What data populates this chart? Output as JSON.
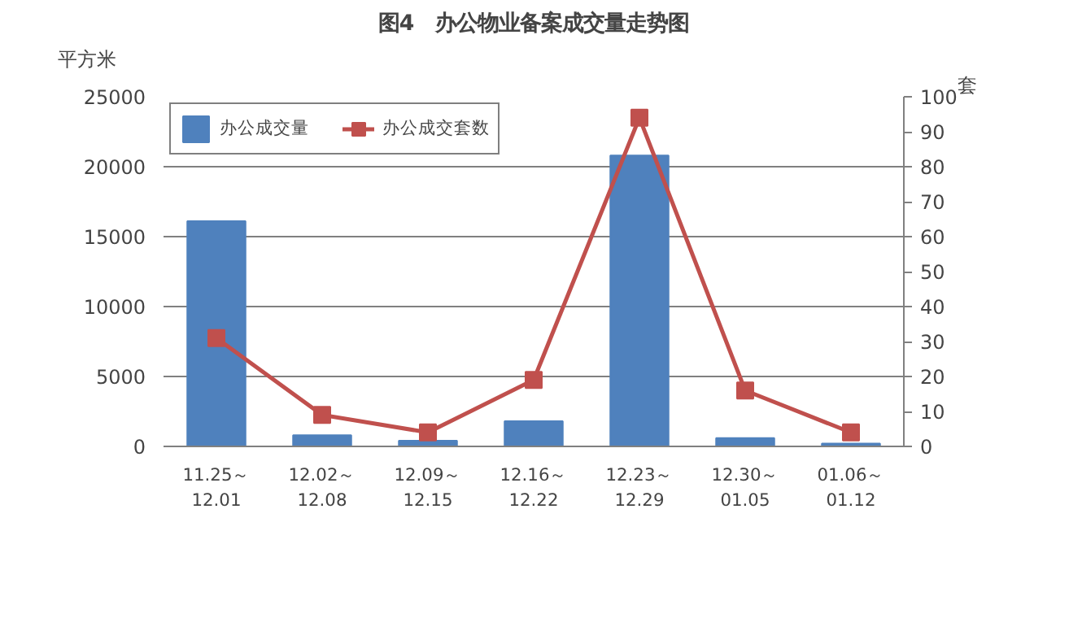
{
  "chart_data": {
    "type": "bar",
    "title": "图4　办公物业备案成交量走势图",
    "ylabel": "平方米",
    "y2label": "套",
    "categories": [
      "11.25～\n12.01",
      "12.02～\n12.08",
      "12.09～\n12.15",
      "12.16～\n12.22",
      "12.23～\n12.29",
      "12.30～\n01.05",
      "01.06～\n01.12"
    ],
    "series": [
      {
        "name": "办公成交量",
        "color": "#4f81bd",
        "values": [
          16100,
          800,
          400,
          1800,
          20800,
          600,
          200
        ]
      },
      {
        "name": "办公成交套数",
        "type": "line",
        "axis": "y2",
        "color": "#c0504d",
        "marker": "square",
        "values": [
          31,
          9,
          4,
          19,
          94,
          16,
          4
        ]
      }
    ],
    "ylim": [
      0,
      25000
    ],
    "yticks": [
      0,
      5000,
      10000,
      15000,
      20000,
      25000
    ],
    "y2lim": [
      0,
      100
    ],
    "y2ticks": [
      0,
      10,
      20,
      30,
      40,
      50,
      60,
      70,
      80,
      90,
      100
    ],
    "grid": "y",
    "legend": "top left"
  }
}
